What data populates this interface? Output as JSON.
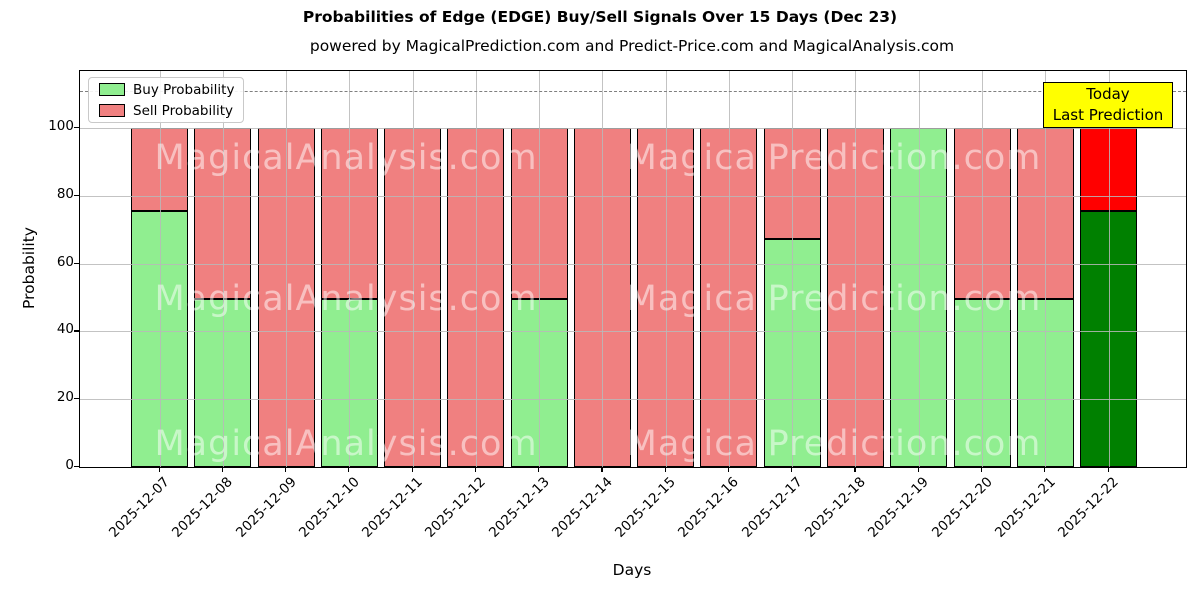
{
  "chart_data": {
    "type": "bar",
    "stacked": true,
    "title": "Probabilities of Edge (EDGE) Buy/Sell Signals Over 15 Days (Dec 23)",
    "subtitle": "powered by MagicalPrediction.com and Predict-Price.com and MagicalAnalysis.com",
    "xlabel": "Days",
    "ylabel": "Probability",
    "categories": [
      "2025-12-07",
      "2025-12-08",
      "2025-12-09",
      "2025-12-10",
      "2025-12-11",
      "2025-12-12",
      "2025-12-13",
      "2025-12-14",
      "2025-12-15",
      "2025-12-16",
      "2025-12-17",
      "2025-12-18",
      "2025-12-19",
      "2025-12-20",
      "2025-12-21",
      "2025-12-22"
    ],
    "series": [
      {
        "name": "Buy Probability",
        "values": [
          75.5,
          49.5,
          0,
          49.5,
          0,
          0,
          49.5,
          0,
          0,
          0,
          67.3,
          0,
          100,
          49.5,
          49.5,
          75.5
        ]
      },
      {
        "name": "Sell Probability",
        "values": [
          24.5,
          50.5,
          100,
          50.5,
          100,
          100,
          50.5,
          100,
          100,
          100,
          32.7,
          100,
          0,
          50.5,
          50.5,
          24.5
        ]
      }
    ],
    "yticks": [
      0,
      20,
      40,
      60,
      80,
      100
    ],
    "ylim": [
      0,
      117
    ],
    "dashed_line_y": 111,
    "grid": true,
    "legend_position": "upper left",
    "today_index": 15,
    "colors": {
      "buy": "#90EE90",
      "sell": "#F08080",
      "today_buy": "#008000",
      "today_sell": "#FF0000",
      "annotation_bg": "#FFFF00",
      "grid": "#b9b9b9",
      "dashed_line": "#7f7f7f"
    },
    "annotation": {
      "lines": [
        "Today",
        "Last Prediction"
      ]
    },
    "watermarks": {
      "left": "MagicalAnalysis.com",
      "right": "MagicalPrediction.com"
    }
  }
}
